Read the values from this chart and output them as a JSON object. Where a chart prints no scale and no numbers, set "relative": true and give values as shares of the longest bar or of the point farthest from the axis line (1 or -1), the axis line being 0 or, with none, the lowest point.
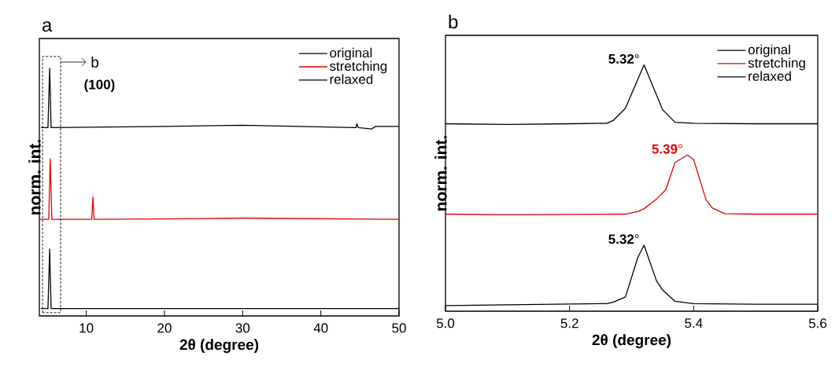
{
  "chart_data": [
    {
      "type": "line",
      "title": "a",
      "xlabel": "2θ (degree)",
      "ylabel": "norm. int.",
      "relative": true,
      "xlim": [
        4,
        50
      ],
      "xticks": [
        10,
        20,
        30,
        40,
        50
      ],
      "tick_labels": "x",
      "legend": "top right",
      "annotations": [
        "(100)",
        "b"
      ],
      "series": [
        {
          "name": "original",
          "color": "#000000",
          "x": [
            4.2,
            5.1,
            5.32,
            5.5,
            20,
            30,
            44.5,
            44.6,
            44.8,
            46.5,
            47,
            50
          ],
          "values": [
            0.76,
            0.76,
            1.0,
            0.76,
            0.765,
            0.77,
            0.76,
            0.775,
            0.76,
            0.755,
            0.765,
            0.765
          ]
        },
        {
          "name": "stretching",
          "color": "#e00000",
          "x": [
            4,
            5.2,
            5.39,
            5.6,
            10.7,
            10.85,
            11.0,
            22,
            30,
            50
          ],
          "values": [
            0.39,
            0.39,
            0.635,
            0.39,
            0.39,
            0.48,
            0.39,
            0.392,
            0.395,
            0.39
          ]
        },
        {
          "name": "relaxed",
          "color": "#000000",
          "x": [
            4.2,
            5.1,
            5.32,
            5.5,
            50
          ],
          "values": [
            0.03,
            0.03,
            0.27,
            0.03,
            0.03
          ]
        }
      ]
    },
    {
      "type": "line",
      "title": "b",
      "xlabel": "2θ (degree)",
      "ylabel": "norm. int.",
      "relative": true,
      "xlim": [
        5.0,
        5.6
      ],
      "xticks": [
        {
          "value": 5.0,
          "label": "5.0"
        },
        5.2,
        5.4,
        5.6
      ],
      "tick_labels": "x",
      "legend": "top right",
      "annotations": [
        "**5.32**°",
        "**5.39**°",
        "**5.32**°"
      ],
      "series": [
        {
          "name": "original",
          "color": "#000000",
          "x": [
            5.0,
            5.1,
            5.2,
            5.26,
            5.27,
            5.29,
            5.32,
            5.35,
            5.37,
            5.4,
            5.5,
            5.6
          ],
          "values": [
            0.761,
            0.758,
            0.761,
            0.763,
            0.774,
            0.824,
            1.0,
            0.818,
            0.767,
            0.763,
            0.761,
            0.761
          ]
        },
        {
          "name": "stretching",
          "color": "#e00000",
          "x": [
            5.0,
            5.1,
            5.29,
            5.31,
            5.32,
            5.34,
            5.355,
            5.37,
            5.39,
            5.4,
            5.42,
            5.43,
            5.45,
            5.5,
            5.6
          ],
          "values": [
            0.394,
            0.392,
            0.394,
            0.405,
            0.416,
            0.455,
            0.493,
            0.604,
            0.634,
            0.615,
            0.452,
            0.419,
            0.396,
            0.394,
            0.394
          ]
        },
        {
          "name": "relaxed",
          "color": "#000000",
          "x": [
            5.0,
            5.2,
            5.26,
            5.27,
            5.29,
            5.31,
            5.32,
            5.34,
            5.35,
            5.37,
            5.4,
            5.5,
            5.6
          ],
          "values": [
            0.023,
            0.029,
            0.031,
            0.036,
            0.058,
            0.218,
            0.268,
            0.124,
            0.086,
            0.04,
            0.031,
            0.028,
            0.028
          ]
        }
      ]
    }
  ]
}
